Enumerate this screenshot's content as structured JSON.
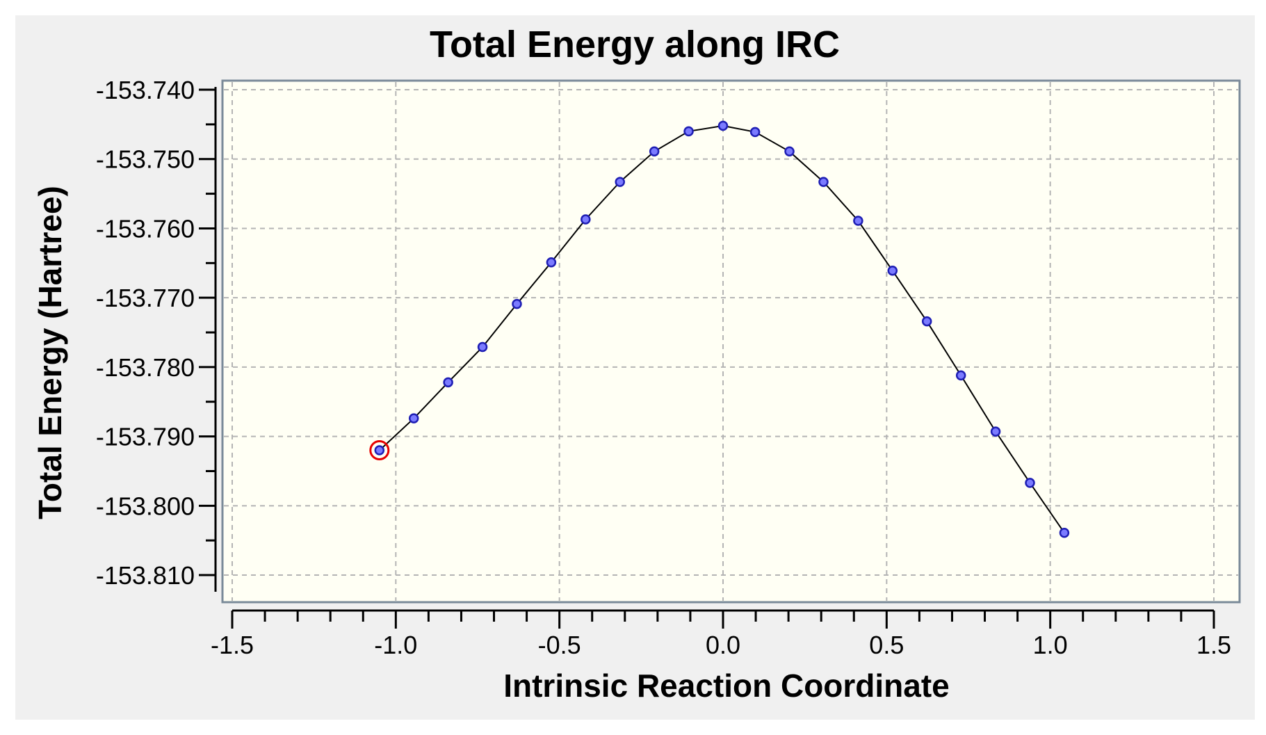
{
  "chart_data": {
    "type": "scatter",
    "title": "Total Energy along IRC",
    "xlabel": "Intrinsic Reaction Coordinate",
    "ylabel": "Total Energy (Hartree)",
    "xlim": [
      -1.5,
      1.5
    ],
    "ylim": [
      -153.812,
      -153.74
    ],
    "x_ticks": [
      -1.5,
      -1.0,
      -0.5,
      0.0,
      0.5,
      1.0,
      1.5
    ],
    "x_tick_labels": [
      "-1.5",
      "-1.0",
      "-0.5",
      "0.0",
      "0.5",
      "1.0",
      "1.5"
    ],
    "y_ticks": [
      -153.74,
      -153.75,
      -153.76,
      -153.77,
      -153.78,
      -153.79,
      -153.8,
      -153.81
    ],
    "y_tick_labels": [
      "-153.740",
      "-153.750",
      "-153.760",
      "-153.770",
      "-153.780",
      "-153.790",
      "-153.800",
      "-153.810"
    ],
    "grid": true,
    "connected_line": true,
    "selected_point_index": 0,
    "series": [
      {
        "x": [
          -1.05,
          -0.945,
          -0.84,
          -0.735,
          -0.63,
          -0.525,
          -0.42,
          -0.315,
          -0.21,
          -0.105,
          0.0,
          0.098,
          0.203,
          0.307,
          0.413,
          0.518,
          0.623,
          0.727,
          0.833,
          0.938,
          1.043
        ],
        "y": [
          -153.792,
          -153.7874,
          -153.7822,
          -153.7771,
          -153.7709,
          -153.7649,
          -153.7587,
          -153.7533,
          -153.7489,
          -153.746,
          -153.7452,
          -153.7461,
          -153.7489,
          -153.7533,
          -153.7589,
          -153.7661,
          -153.7734,
          -153.7812,
          -153.7893,
          -153.7967,
          -153.8039
        ]
      }
    ]
  },
  "colors": {
    "panel_bg": "#f0f0f0",
    "plot_bg": "#fffff4",
    "plot_border": "#7a8a99",
    "grid": "#b4b4b4",
    "line": "#000000",
    "marker_fill": "#7b7bff",
    "marker_stroke": "#1e1eb4",
    "highlight": "#e60000"
  }
}
